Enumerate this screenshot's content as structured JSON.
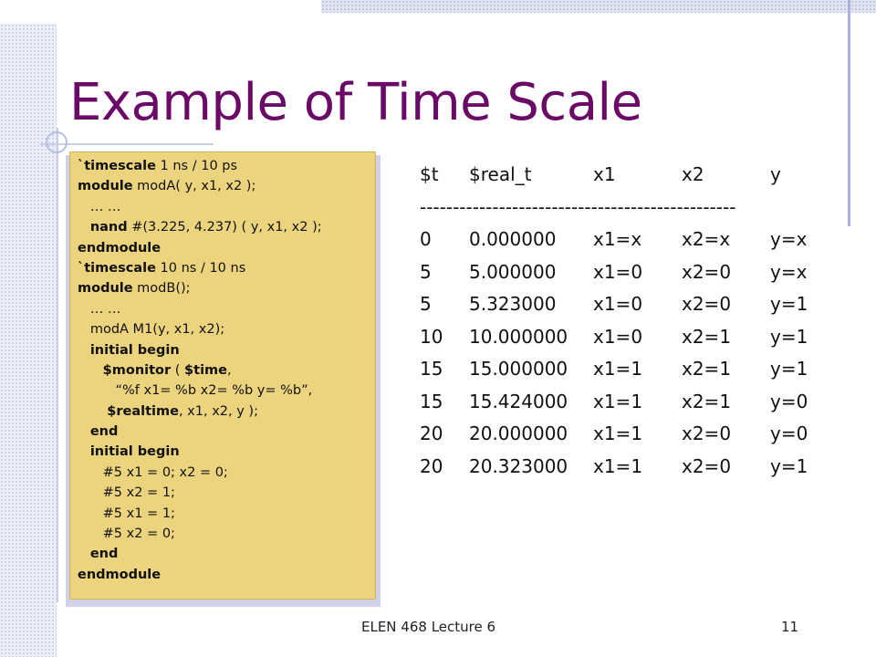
{
  "slide": {
    "title": "Example of Time Scale",
    "footer": "ELEN 468 Lecture 6",
    "page_number": "11"
  },
  "code": [
    {
      "b": "`timescale",
      "t": " 1 ns / 10 ps",
      "indent": ""
    },
    {
      "b": "module",
      "t": " modA( y, x1, x2 );",
      "indent": ""
    },
    {
      "b": "",
      "t": "… …",
      "indent": "   "
    },
    {
      "b": "nand",
      "t": " #(3.225, 4.237) ( y, x1, x2 );",
      "indent": "   "
    },
    {
      "b": "endmodule",
      "t": "",
      "indent": ""
    },
    {
      "b": "`timescale",
      "t": " 10 ns / 10 ns",
      "indent": ""
    },
    {
      "b": "module",
      "t": " modB();",
      "indent": ""
    },
    {
      "b": "",
      "t": "… …",
      "indent": "   "
    },
    {
      "b": "",
      "t": "modA M1(y, x1, x2);",
      "indent": "   "
    },
    {
      "b": "initial begin",
      "t": "",
      "indent": "   "
    },
    {
      "b": "$monitor",
      "t": " ( ",
      "b2": "$time",
      "t2": ",",
      "indent": "      "
    },
    {
      "b": "",
      "t": "“%f x1= %b x2= %b y= %b”,",
      "indent": "         "
    },
    {
      "b": "$realtime",
      "t": ", x1, x2, y );",
      "indent": "       "
    },
    {
      "b": "end",
      "t": "",
      "indent": "   "
    },
    {
      "b": "initial begin",
      "t": "",
      "indent": "   "
    },
    {
      "b": "",
      "t": "#5 x1 = 0; x2 = 0;",
      "indent": "      "
    },
    {
      "b": "",
      "t": "#5 x2 = 1;",
      "indent": "      "
    },
    {
      "b": "",
      "t": "#5 x1 = 1;",
      "indent": "      "
    },
    {
      "b": "",
      "t": "#5 x2 = 0;",
      "indent": "      "
    },
    {
      "b": "end",
      "t": "",
      "indent": "   "
    },
    {
      "b": "endmodule",
      "t": "",
      "indent": ""
    }
  ],
  "output_table": {
    "headers": [
      "$t",
      "$real_t",
      "x1",
      "x2",
      "y"
    ],
    "separator": "------------------------------------------------",
    "rows": [
      [
        "0",
        "0.000000",
        "x1=x",
        "x2=x",
        "y=x"
      ],
      [
        "5",
        "5.000000",
        "x1=0",
        "x2=0",
        "y=x"
      ],
      [
        "5",
        "5.323000",
        "x1=0",
        "x2=0",
        "y=1"
      ],
      [
        "10",
        "10.000000",
        "x1=0",
        "x2=1",
        "y=1"
      ],
      [
        "15",
        "15.000000",
        "x1=1",
        "x2=1",
        "y=1"
      ],
      [
        "15",
        "15.424000",
        "x1=1",
        "x2=1",
        "y=0"
      ],
      [
        "20",
        "20.000000",
        "x1=1",
        "x2=0",
        "y=0"
      ],
      [
        "20",
        "20.323000",
        "x1=1",
        "x2=0",
        "y=1"
      ]
    ]
  }
}
